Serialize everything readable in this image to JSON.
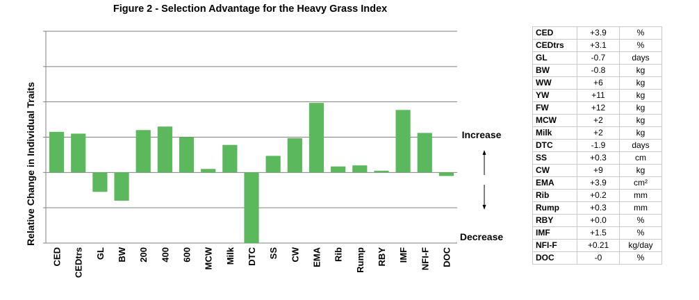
{
  "chart_data": {
    "type": "bar",
    "title": "Figure 2 - Selection Advantage for the Heavy Grass Index",
    "ylabel": "Relative Change in Individual Traits",
    "xlabel": "",
    "categories": [
      "CED",
      "CEDtrs",
      "GL",
      "BW",
      "200",
      "400",
      "600",
      "MCW",
      "Milk",
      "DTC",
      "SS",
      "CW",
      "EMA",
      "Rib",
      "Rump",
      "RBY",
      "IMF",
      "NFI-F",
      "DOC"
    ],
    "values": [
      1.15,
      1.1,
      -0.55,
      -0.8,
      1.2,
      1.3,
      1.0,
      0.1,
      0.78,
      -2.35,
      0.47,
      0.97,
      1.97,
      0.17,
      0.2,
      0.05,
      1.77,
      1.12,
      -0.1
    ],
    "ylim": [
      -2,
      4
    ],
    "yticks": [
      -2,
      -1,
      0,
      1,
      2,
      3,
      4
    ],
    "tick_labels_shown": false,
    "grid": true,
    "bar_color": "#5cb85c",
    "annotations": [
      "Increase",
      "Decrease"
    ]
  },
  "table": {
    "rows": [
      {
        "trait": "CED",
        "value": "+3.9",
        "unit": "%"
      },
      {
        "trait": "CEDtrs",
        "value": "+3.1",
        "unit": "%"
      },
      {
        "trait": "GL",
        "value": "-0.7",
        "unit": "days"
      },
      {
        "trait": "BW",
        "value": "-0.8",
        "unit": "kg"
      },
      {
        "trait": "WW",
        "value": "+6",
        "unit": "kg"
      },
      {
        "trait": "YW",
        "value": "+11",
        "unit": "kg"
      },
      {
        "trait": "FW",
        "value": "+12",
        "unit": "kg"
      },
      {
        "trait": "MCW",
        "value": "+2",
        "unit": "kg"
      },
      {
        "trait": "Milk",
        "value": "+2",
        "unit": "kg"
      },
      {
        "trait": "DTC",
        "value": "-1.9",
        "unit": "days"
      },
      {
        "trait": "SS",
        "value": "+0.3",
        "unit": "cm"
      },
      {
        "trait": "CW",
        "value": "+9",
        "unit": "kg"
      },
      {
        "trait": "EMA",
        "value": "+3.9",
        "unit": "cm²"
      },
      {
        "trait": "Rib",
        "value": "+0.2",
        "unit": "mm"
      },
      {
        "trait": "Rump",
        "value": "+0.3",
        "unit": "mm"
      },
      {
        "trait": "RBY",
        "value": "+0.0",
        "unit": "%"
      },
      {
        "trait": "IMF",
        "value": "+1.5",
        "unit": "%"
      },
      {
        "trait": "NFI-F",
        "value": "+0.21",
        "unit": "kg/day"
      },
      {
        "trait": "DOC",
        "value": "-0",
        "unit": "%"
      }
    ]
  }
}
